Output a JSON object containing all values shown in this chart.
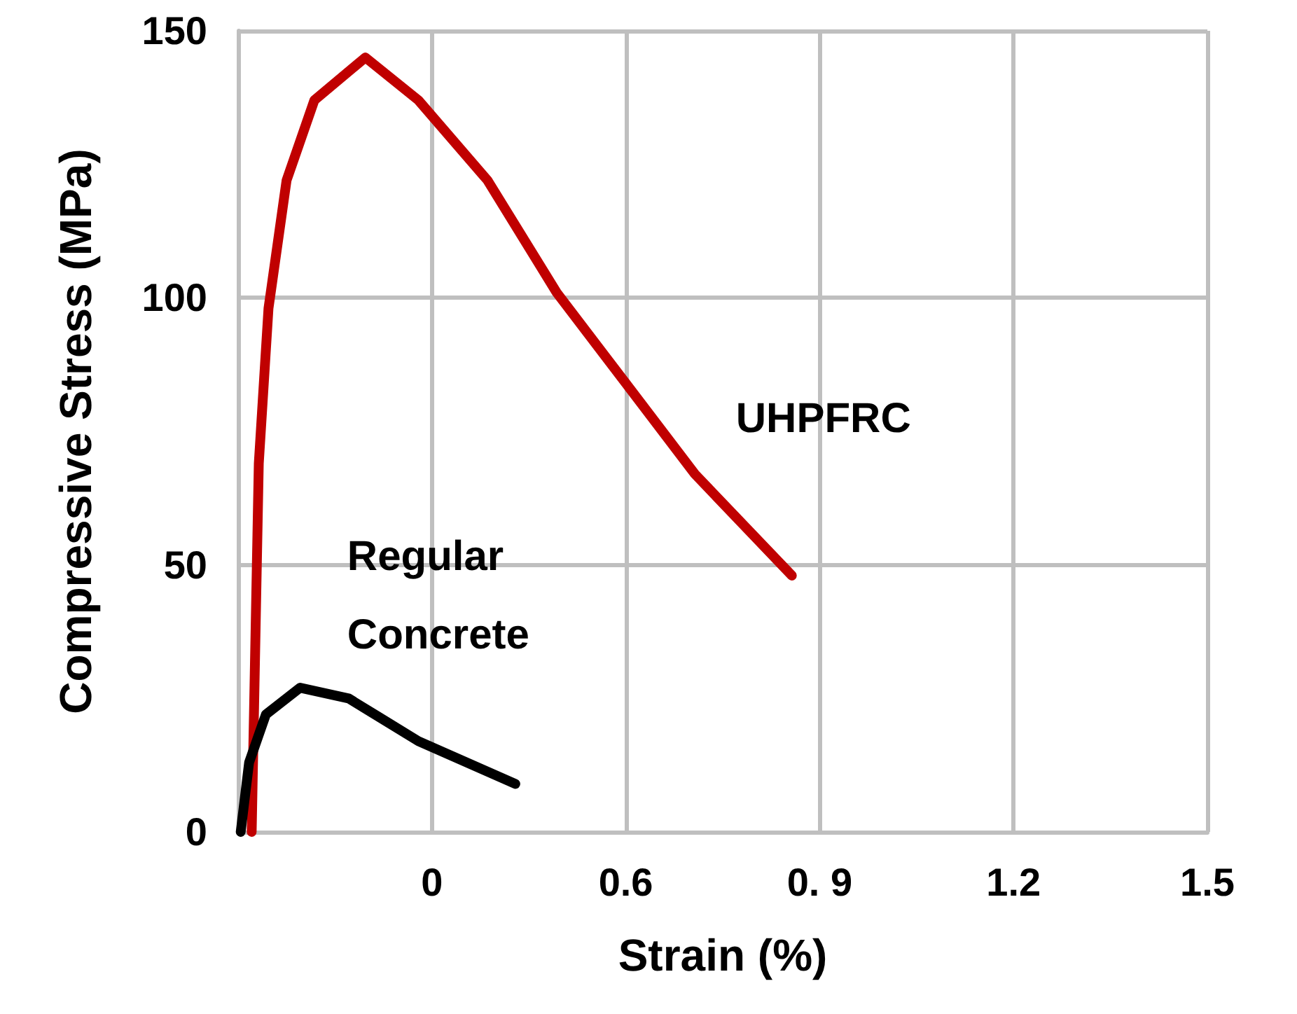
{
  "chart_data": {
    "type": "line",
    "xlabel": "Strain (%)",
    "ylabel": "Compressive Stress (MPa)",
    "xlim": [
      0,
      1.5
    ],
    "ylim": [
      0,
      150
    ],
    "xticks": [
      {
        "value": 0.3,
        "label": "0"
      },
      0.6,
      {
        "value": 0.9,
        "label": "0. 9"
      },
      1.2,
      1.5
    ],
    "yticks": [
      0,
      50,
      100,
      150
    ],
    "grid": true,
    "legend": false,
    "marker": "none",
    "line_style": "solid",
    "series": [
      {
        "name": "UHPFRC",
        "color": "#c00000",
        "x": [
          0.021,
          0.032,
          0.047,
          0.075,
          0.118,
          0.197,
          0.279,
          0.386,
          0.493,
          0.6,
          0.707,
          0.857
        ],
        "values": [
          0,
          69,
          98,
          122,
          137,
          145,
          137,
          122,
          101,
          84,
          67,
          48
        ]
      },
      {
        "name": "Regular Concrete",
        "color": "#000000",
        "x": [
          0.004,
          0.017,
          0.043,
          0.096,
          0.171,
          0.279,
          0.429
        ],
        "values": [
          0,
          13,
          22,
          27,
          25,
          17,
          9
        ]
      }
    ]
  }
}
